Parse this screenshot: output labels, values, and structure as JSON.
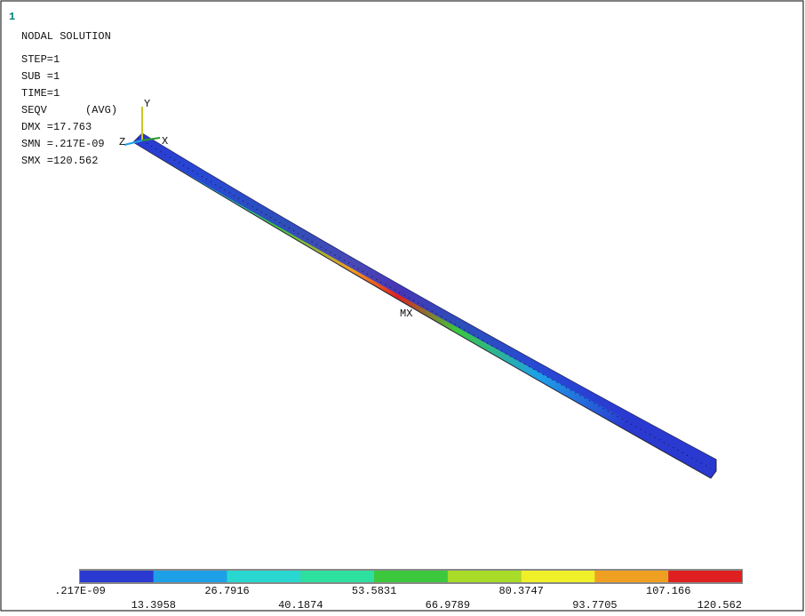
{
  "window_number": "1",
  "info": {
    "title": "NODAL SOLUTION",
    "lines": [
      "STEP=1",
      "SUB =1",
      "TIME=1",
      "SEQV      (AVG)",
      "DMX =17.763",
      "SMN =.217E-09",
      "SMX =120.562"
    ]
  },
  "triad": {
    "y": "Y",
    "x": "X",
    "z": "Z"
  },
  "max_marker": "MX",
  "legend": {
    "colors": [
      "#2a3ad0",
      "#1ea0e8",
      "#28d8d0",
      "#2ee0a0",
      "#3cc83c",
      "#a8dc28",
      "#f0f028",
      "#f0a020",
      "#e02020"
    ],
    "labels": [
      ".217E-09",
      "13.3958",
      "26.7916",
      "40.1874",
      "53.5831",
      "66.9789",
      "80.3747",
      "93.7705",
      "107.166",
      "120.562"
    ]
  }
}
